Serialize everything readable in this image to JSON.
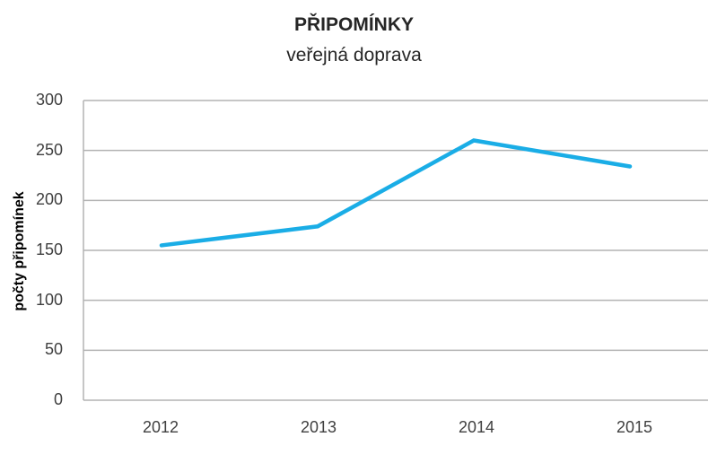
{
  "chart_data": {
    "type": "line",
    "title": "PŘIPOMÍNKY",
    "subtitle": "veřejná doprava",
    "xlabel": "",
    "ylabel": "počty připomínek",
    "categories": [
      "2012",
      "2013",
      "2014",
      "2015"
    ],
    "series": [
      {
        "name": "počty připomínek",
        "values": [
          155,
          174,
          260,
          234
        ],
        "color": "#1AADE6"
      }
    ],
    "ylim": [
      0,
      300
    ],
    "yticks": [
      "0",
      "50",
      "100",
      "150",
      "200",
      "250",
      "300"
    ],
    "grid": true,
    "legend": "none"
  }
}
